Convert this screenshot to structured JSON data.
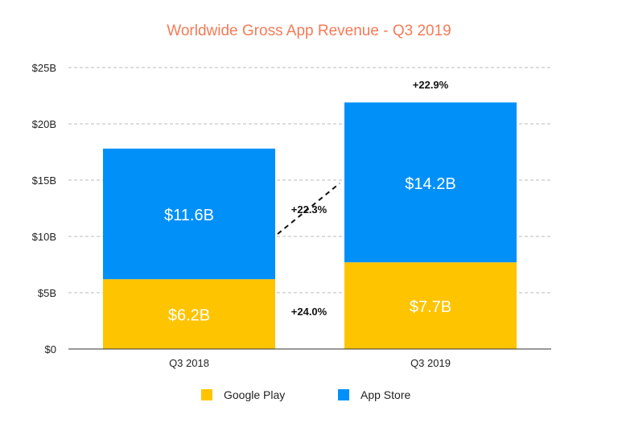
{
  "chart_data": {
    "type": "bar",
    "stacked": true,
    "title": "Worldwide Gross App Revenue - Q3 2019",
    "categories": [
      "Q3 2018",
      "Q3 2019"
    ],
    "series": [
      {
        "name": "Google Play",
        "values": [
          6.2,
          7.7
        ],
        "labels": [
          "$6.2B",
          "$7.7B"
        ],
        "color": "#ffc400"
      },
      {
        "name": "App Store",
        "values": [
          11.6,
          14.2
        ],
        "labels": [
          "$11.6B",
          "$14.2B"
        ],
        "color": "#0090f8"
      }
    ],
    "yticks": [
      0,
      5,
      10,
      15,
      20,
      25
    ],
    "ytick_labels": [
      "$0",
      "$5B",
      "$10B",
      "$15B",
      "$20B",
      "$25B"
    ],
    "ylim": [
      0,
      25
    ],
    "grid": "horizontal dashed",
    "legend": "bottom",
    "annotations": {
      "total_growth": "+22.9%",
      "app_store_growth": "+22.3%",
      "google_play_growth": "+24.0%"
    },
    "title_color": "#f47b58"
  }
}
